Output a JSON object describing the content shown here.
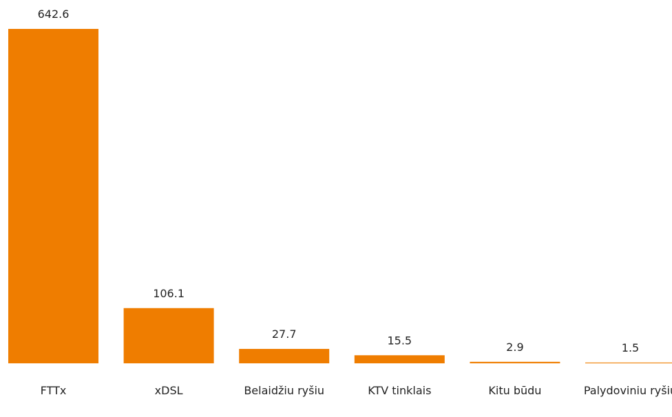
{
  "chart_data": {
    "type": "bar",
    "categories": [
      "FTTx",
      "xDSL",
      "Belaidžiu ryšiu",
      "KTV tinklais",
      "Kitu būdu",
      "Palydoviniu ryšiu"
    ],
    "values": [
      642.6,
      106.1,
      27.7,
      15.5,
      2.9,
      1.5
    ],
    "color": "#ef7d00"
  }
}
